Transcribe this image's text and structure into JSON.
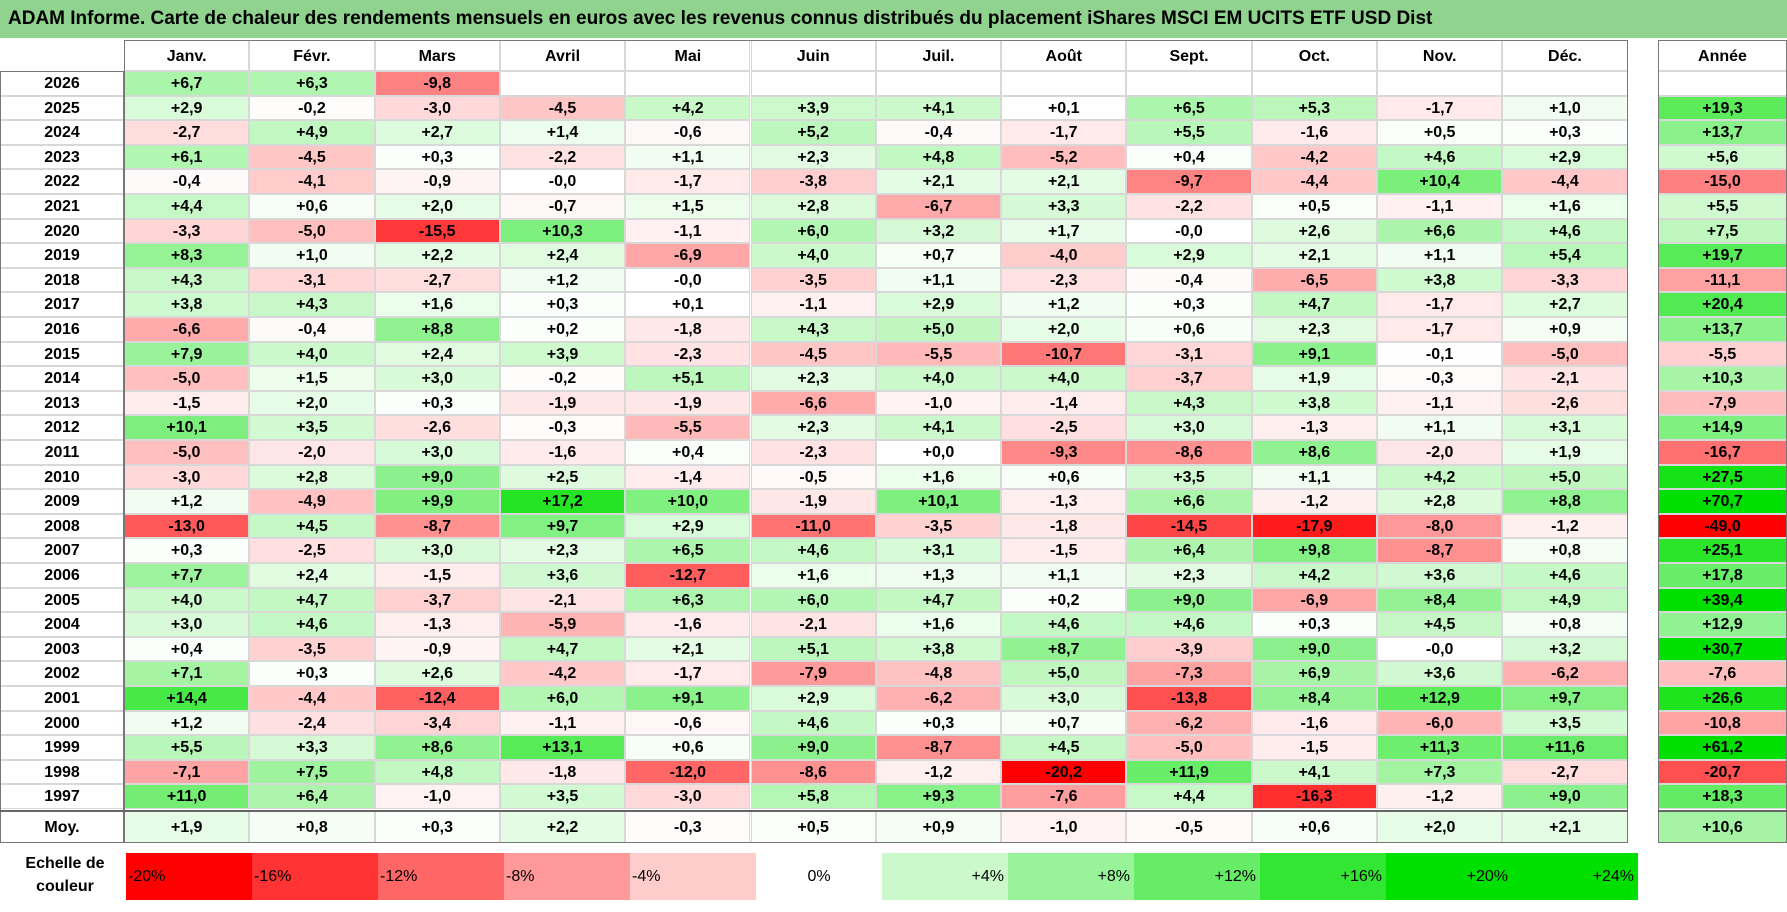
{
  "colors": {
    "title_bg": "#8fd38f",
    "neg_max": "#ff0000",
    "pos_max": "#00e000",
    "neutral": "#ffffff"
  },
  "chart_data": {
    "type": "heatmap",
    "title": "ADAM Informe. Carte de chaleur des rendements mensuels en euros avec les revenus connus distribués du placement iShares MSCI EM UCITS ETF USD Dist",
    "columns": [
      "Janv.",
      "Févr.",
      "Mars",
      "Avril",
      "Mai",
      "Juin",
      "Juil.",
      "Août",
      "Sept.",
      "Oct.",
      "Nov.",
      "Déc."
    ],
    "year_header": "Année",
    "rows": [
      {
        "year": "2026",
        "values": [
          "+6,7",
          "+6,3",
          "-9,8",
          "",
          "",
          "",
          "",
          "",
          "",
          "",
          "",
          ""
        ],
        "annual": ""
      },
      {
        "year": "2025",
        "values": [
          "+2,9",
          "-0,2",
          "-3,0",
          "-4,5",
          "+4,2",
          "+3,9",
          "+4,1",
          "+0,1",
          "+6,5",
          "+5,3",
          "-1,7",
          "+1,0"
        ],
        "annual": "+19,3"
      },
      {
        "year": "2024",
        "values": [
          "-2,7",
          "+4,9",
          "+2,7",
          "+1,4",
          "-0,6",
          "+5,2",
          "-0,4",
          "-1,7",
          "+5,5",
          "-1,6",
          "+0,5",
          "+0,3"
        ],
        "annual": "+13,7"
      },
      {
        "year": "2023",
        "values": [
          "+6,1",
          "-4,5",
          "+0,3",
          "-2,2",
          "+1,1",
          "+2,3",
          "+4,8",
          "-5,2",
          "+0,4",
          "-4,2",
          "+4,6",
          "+2,9"
        ],
        "annual": "+5,6"
      },
      {
        "year": "2022",
        "values": [
          "-0,4",
          "-4,1",
          "-0,9",
          "-0,0",
          "-1,7",
          "-3,8",
          "+2,1",
          "+2,1",
          "-9,7",
          "-4,4",
          "+10,4",
          "-4,4"
        ],
        "annual": "-15,0"
      },
      {
        "year": "2021",
        "values": [
          "+4,4",
          "+0,6",
          "+2,0",
          "-0,7",
          "+1,5",
          "+2,8",
          "-6,7",
          "+3,3",
          "-2,2",
          "+0,5",
          "-1,1",
          "+1,6"
        ],
        "annual": "+5,5"
      },
      {
        "year": "2020",
        "values": [
          "-3,3",
          "-5,0",
          "-15,5",
          "+10,3",
          "-1,1",
          "+6,0",
          "+3,2",
          "+1,7",
          "-0,0",
          "+2,6",
          "+6,6",
          "+4,6"
        ],
        "annual": "+7,5"
      },
      {
        "year": "2019",
        "values": [
          "+8,3",
          "+1,0",
          "+2,2",
          "+2,4",
          "-6,9",
          "+4,0",
          "+0,7",
          "-4,0",
          "+2,9",
          "+2,1",
          "+1,1",
          "+5,4"
        ],
        "annual": "+19,7"
      },
      {
        "year": "2018",
        "values": [
          "+4,3",
          "-3,1",
          "-2,7",
          "+1,2",
          "-0,0",
          "-3,5",
          "+1,1",
          "-2,3",
          "-0,4",
          "-6,5",
          "+3,8",
          "-3,3"
        ],
        "annual": "-11,1"
      },
      {
        "year": "2017",
        "values": [
          "+3,8",
          "+4,3",
          "+1,6",
          "+0,3",
          "+0,1",
          "-1,1",
          "+2,9",
          "+1,2",
          "+0,3",
          "+4,7",
          "-1,7",
          "+2,7"
        ],
        "annual": "+20,4"
      },
      {
        "year": "2016",
        "values": [
          "-6,6",
          "-0,4",
          "+8,8",
          "+0,2",
          "-1,8",
          "+4,3",
          "+5,0",
          "+2,0",
          "+0,6",
          "+2,3",
          "-1,7",
          "+0,9"
        ],
        "annual": "+13,7"
      },
      {
        "year": "2015",
        "values": [
          "+7,9",
          "+4,0",
          "+2,4",
          "+3,9",
          "-2,3",
          "-4,5",
          "-5,5",
          "-10,7",
          "-3,1",
          "+9,1",
          "-0,1",
          "-5,0"
        ],
        "annual": "-5,5"
      },
      {
        "year": "2014",
        "values": [
          "-5,0",
          "+1,5",
          "+3,0",
          "-0,2",
          "+5,1",
          "+2,3",
          "+4,0",
          "+4,0",
          "-3,7",
          "+1,9",
          "-0,3",
          "-2,1"
        ],
        "annual": "+10,3"
      },
      {
        "year": "2013",
        "values": [
          "-1,5",
          "+2,0",
          "+0,3",
          "-1,9",
          "-1,9",
          "-6,6",
          "-1,0",
          "-1,4",
          "+4,3",
          "+3,8",
          "-1,1",
          "-2,6"
        ],
        "annual": "-7,9"
      },
      {
        "year": "2012",
        "values": [
          "+10,1",
          "+3,5",
          "-2,6",
          "-0,3",
          "-5,5",
          "+2,3",
          "+4,1",
          "-2,5",
          "+3,0",
          "-1,3",
          "+1,1",
          "+3,1"
        ],
        "annual": "+14,9"
      },
      {
        "year": "2011",
        "values": [
          "-5,0",
          "-2,0",
          "+3,0",
          "-1,6",
          "+0,4",
          "-2,3",
          "+0,0",
          "-9,3",
          "-8,6",
          "+8,6",
          "-2,0",
          "+1,9"
        ],
        "annual": "-16,7"
      },
      {
        "year": "2010",
        "values": [
          "-3,0",
          "+2,8",
          "+9,0",
          "+2,5",
          "-1,4",
          "-0,5",
          "+1,6",
          "+0,6",
          "+3,5",
          "+1,1",
          "+4,2",
          "+5,0"
        ],
        "annual": "+27,5"
      },
      {
        "year": "2009",
        "values": [
          "+1,2",
          "-4,9",
          "+9,9",
          "+17,2",
          "+10,0",
          "-1,9",
          "+10,1",
          "-1,3",
          "+6,6",
          "-1,2",
          "+2,8",
          "+8,8"
        ],
        "annual": "+70,7"
      },
      {
        "year": "2008",
        "values": [
          "-13,0",
          "+4,5",
          "-8,7",
          "+9,7",
          "+2,9",
          "-11,0",
          "-3,5",
          "-1,8",
          "-14,5",
          "-17,9",
          "-8,0",
          "-1,2"
        ],
        "annual": "-49,0"
      },
      {
        "year": "2007",
        "values": [
          "+0,3",
          "-2,5",
          "+3,0",
          "+2,3",
          "+6,5",
          "+4,6",
          "+3,1",
          "-1,5",
          "+6,4",
          "+9,8",
          "-8,7",
          "+0,8"
        ],
        "annual": "+25,1"
      },
      {
        "year": "2006",
        "values": [
          "+7,7",
          "+2,4",
          "-1,5",
          "+3,6",
          "-12,7",
          "+1,6",
          "+1,3",
          "+1,1",
          "+2,3",
          "+4,2",
          "+3,6",
          "+4,6"
        ],
        "annual": "+17,8"
      },
      {
        "year": "2005",
        "values": [
          "+4,0",
          "+4,7",
          "-3,7",
          "-2,1",
          "+6,3",
          "+6,0",
          "+4,7",
          "+0,2",
          "+9,0",
          "-6,9",
          "+8,4",
          "+4,9"
        ],
        "annual": "+39,4"
      },
      {
        "year": "2004",
        "values": [
          "+3,0",
          "+4,6",
          "-1,3",
          "-5,9",
          "-1,6",
          "-2,1",
          "+1,6",
          "+4,6",
          "+4,6",
          "+0,3",
          "+4,5",
          "+0,8"
        ],
        "annual": "+12,9"
      },
      {
        "year": "2003",
        "values": [
          "+0,4",
          "-3,5",
          "-0,9",
          "+4,7",
          "+2,1",
          "+5,1",
          "+3,8",
          "+8,7",
          "-3,9",
          "+9,0",
          "-0,0",
          "+3,2"
        ],
        "annual": "+30,7"
      },
      {
        "year": "2002",
        "values": [
          "+7,1",
          "+0,3",
          "+2,6",
          "-4,2",
          "-1,7",
          "-7,9",
          "-4,8",
          "+5,0",
          "-7,3",
          "+6,9",
          "+3,6",
          "-6,2"
        ],
        "annual": "-7,6"
      },
      {
        "year": "2001",
        "values": [
          "+14,4",
          "-4,4",
          "-12,4",
          "+6,0",
          "+9,1",
          "+2,9",
          "-6,2",
          "+3,0",
          "-13,8",
          "+8,4",
          "+12,9",
          "+9,7"
        ],
        "annual": "+26,6"
      },
      {
        "year": "2000",
        "values": [
          "+1,2",
          "-2,4",
          "-3,4",
          "-1,1",
          "-0,6",
          "+4,6",
          "+0,3",
          "+0,7",
          "-6,2",
          "-1,6",
          "-6,0",
          "+3,5"
        ],
        "annual": "-10,8"
      },
      {
        "year": "1999",
        "values": [
          "+5,5",
          "+3,3",
          "+8,6",
          "+13,1",
          "+0,6",
          "+9,0",
          "-8,7",
          "+4,5",
          "-5,0",
          "-1,5",
          "+11,3",
          "+11,6"
        ],
        "annual": "+61,2"
      },
      {
        "year": "1998",
        "values": [
          "-7,1",
          "+7,5",
          "+4,8",
          "-1,8",
          "-12,0",
          "-8,6",
          "-1,2",
          "-20,2",
          "+11,9",
          "+4,1",
          "+7,3",
          "-2,7"
        ],
        "annual": "-20,7"
      },
      {
        "year": "1997",
        "values": [
          "+11,0",
          "+6,4",
          "-1,0",
          "+3,5",
          "-3,0",
          "+5,8",
          "+9,3",
          "-7,6",
          "+4,4",
          "-16,3",
          "-1,2",
          "+9,0"
        ],
        "annual": "+18,3"
      }
    ],
    "average": {
      "label": "Moy.",
      "values": [
        "+1,9",
        "+0,8",
        "+0,3",
        "+2,2",
        "-0,3",
        "+0,5",
        "+0,9",
        "-1,0",
        "-0,5",
        "+0,6",
        "+2,0",
        "+2,1"
      ],
      "annual": "+10,6"
    },
    "scale": {
      "label": "Echelle de couleur",
      "steps": [
        {
          "label": "-20%",
          "value": -20
        },
        {
          "label": "-16%",
          "value": -16
        },
        {
          "label": "-12%",
          "value": -12
        },
        {
          "label": "-8%",
          "value": -8
        },
        {
          "label": "-4%",
          "value": -4
        },
        {
          "label": "0%",
          "value": 0
        },
        {
          "label": "+4%",
          "value": 4
        },
        {
          "label": "+8%",
          "value": 8
        },
        {
          "label": "+12%",
          "value": 12
        },
        {
          "label": "+16%",
          "value": 16
        },
        {
          "label": "+20%",
          "value": 20
        },
        {
          "label": "+24%",
          "value": 24
        }
      ]
    }
  }
}
